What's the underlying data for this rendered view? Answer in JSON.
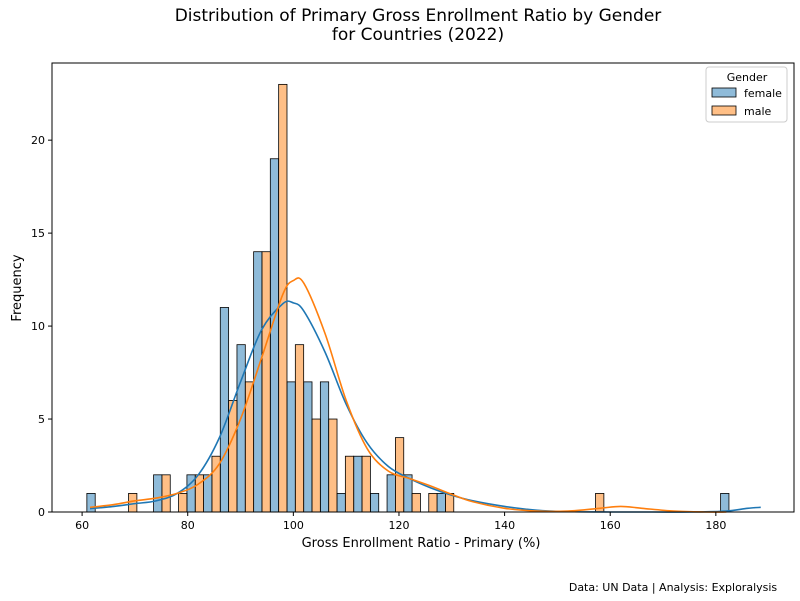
{
  "chart_data": {
    "type": "bar",
    "title_line1": "Distribution of Primary Gross Enrollment Ratio by Gender",
    "title_line2": "for Countries (2022)",
    "xlabel": "Gross Enrollment Ratio - Primary (%)",
    "ylabel": "Frequency",
    "xlim": [
      54.3,
      194.8
    ],
    "ylim": [
      0,
      24.15
    ],
    "xticks": [
      60,
      80,
      100,
      120,
      140,
      160,
      180
    ],
    "yticks": [
      0,
      5,
      10,
      15,
      20
    ],
    "bin_start": 60.9,
    "bin_width": 3.158,
    "legend": {
      "title": "Gender",
      "position": "top-right"
    },
    "series": [
      {
        "name": "female",
        "color": "#1f77b4",
        "values": [
          1,
          0,
          0,
          0,
          2,
          0,
          2,
          2,
          11,
          9,
          14,
          19,
          7,
          7,
          7,
          1,
          3,
          1,
          2,
          2,
          0,
          1,
          0,
          0,
          0,
          0,
          0,
          0,
          0,
          0,
          0,
          0,
          0,
          0,
          0,
          0,
          0,
          0,
          1
        ],
        "kde": [
          [
            61.5,
            0.18
          ],
          [
            66,
            0.3
          ],
          [
            70,
            0.45
          ],
          [
            74,
            0.6
          ],
          [
            78,
            1.0
          ],
          [
            82,
            2.0
          ],
          [
            86,
            4.0
          ],
          [
            90,
            7.0
          ],
          [
            94,
            9.8
          ],
          [
            98,
            11.2
          ],
          [
            100,
            11.25
          ],
          [
            102,
            10.8
          ],
          [
            106,
            8.6
          ],
          [
            110,
            5.8
          ],
          [
            114,
            3.7
          ],
          [
            118,
            2.45
          ],
          [
            122,
            1.8
          ],
          [
            126,
            1.3
          ],
          [
            130,
            0.9
          ],
          [
            134,
            0.6
          ],
          [
            140,
            0.3
          ],
          [
            146,
            0.1
          ],
          [
            152,
            0.02
          ],
          [
            160,
            0.0
          ],
          [
            168,
            0.0
          ],
          [
            176,
            0.0
          ],
          [
            182,
            0.05
          ],
          [
            186,
            0.2
          ],
          [
            188.5,
            0.25
          ]
        ]
      },
      {
        "name": "male",
        "color": "#ff7f0e",
        "values": [
          0,
          0,
          1,
          0,
          2,
          1,
          2,
          3,
          6,
          7,
          14,
          23,
          9,
          5,
          5,
          3,
          3,
          0,
          4,
          1,
          1,
          1,
          0,
          0,
          0,
          0,
          0,
          0,
          0,
          0,
          1,
          0,
          0,
          0,
          0,
          0,
          0,
          0,
          0
        ],
        "kde": [
          [
            61.5,
            0.25
          ],
          [
            66,
            0.4
          ],
          [
            70,
            0.6
          ],
          [
            74,
            0.75
          ],
          [
            78,
            1.0
          ],
          [
            82,
            1.5
          ],
          [
            86,
            2.6
          ],
          [
            90,
            5.0
          ],
          [
            94,
            8.3
          ],
          [
            98,
            11.7
          ],
          [
            100,
            12.45
          ],
          [
            102,
            12.3
          ],
          [
            106,
            9.6
          ],
          [
            110,
            6.0
          ],
          [
            114,
            3.4
          ],
          [
            118,
            2.2
          ],
          [
            122,
            1.8
          ],
          [
            126,
            1.4
          ],
          [
            130,
            0.95
          ],
          [
            134,
            0.55
          ],
          [
            140,
            0.2
          ],
          [
            146,
            0.05
          ],
          [
            152,
            0.05
          ],
          [
            158,
            0.2
          ],
          [
            162,
            0.3
          ],
          [
            166,
            0.2
          ],
          [
            172,
            0.05
          ],
          [
            178,
            0.0
          ],
          [
            182,
            0.0
          ]
        ]
      }
    ]
  },
  "footer": {
    "credit": "Data: UN Data | Analysis: Exploralysis"
  }
}
